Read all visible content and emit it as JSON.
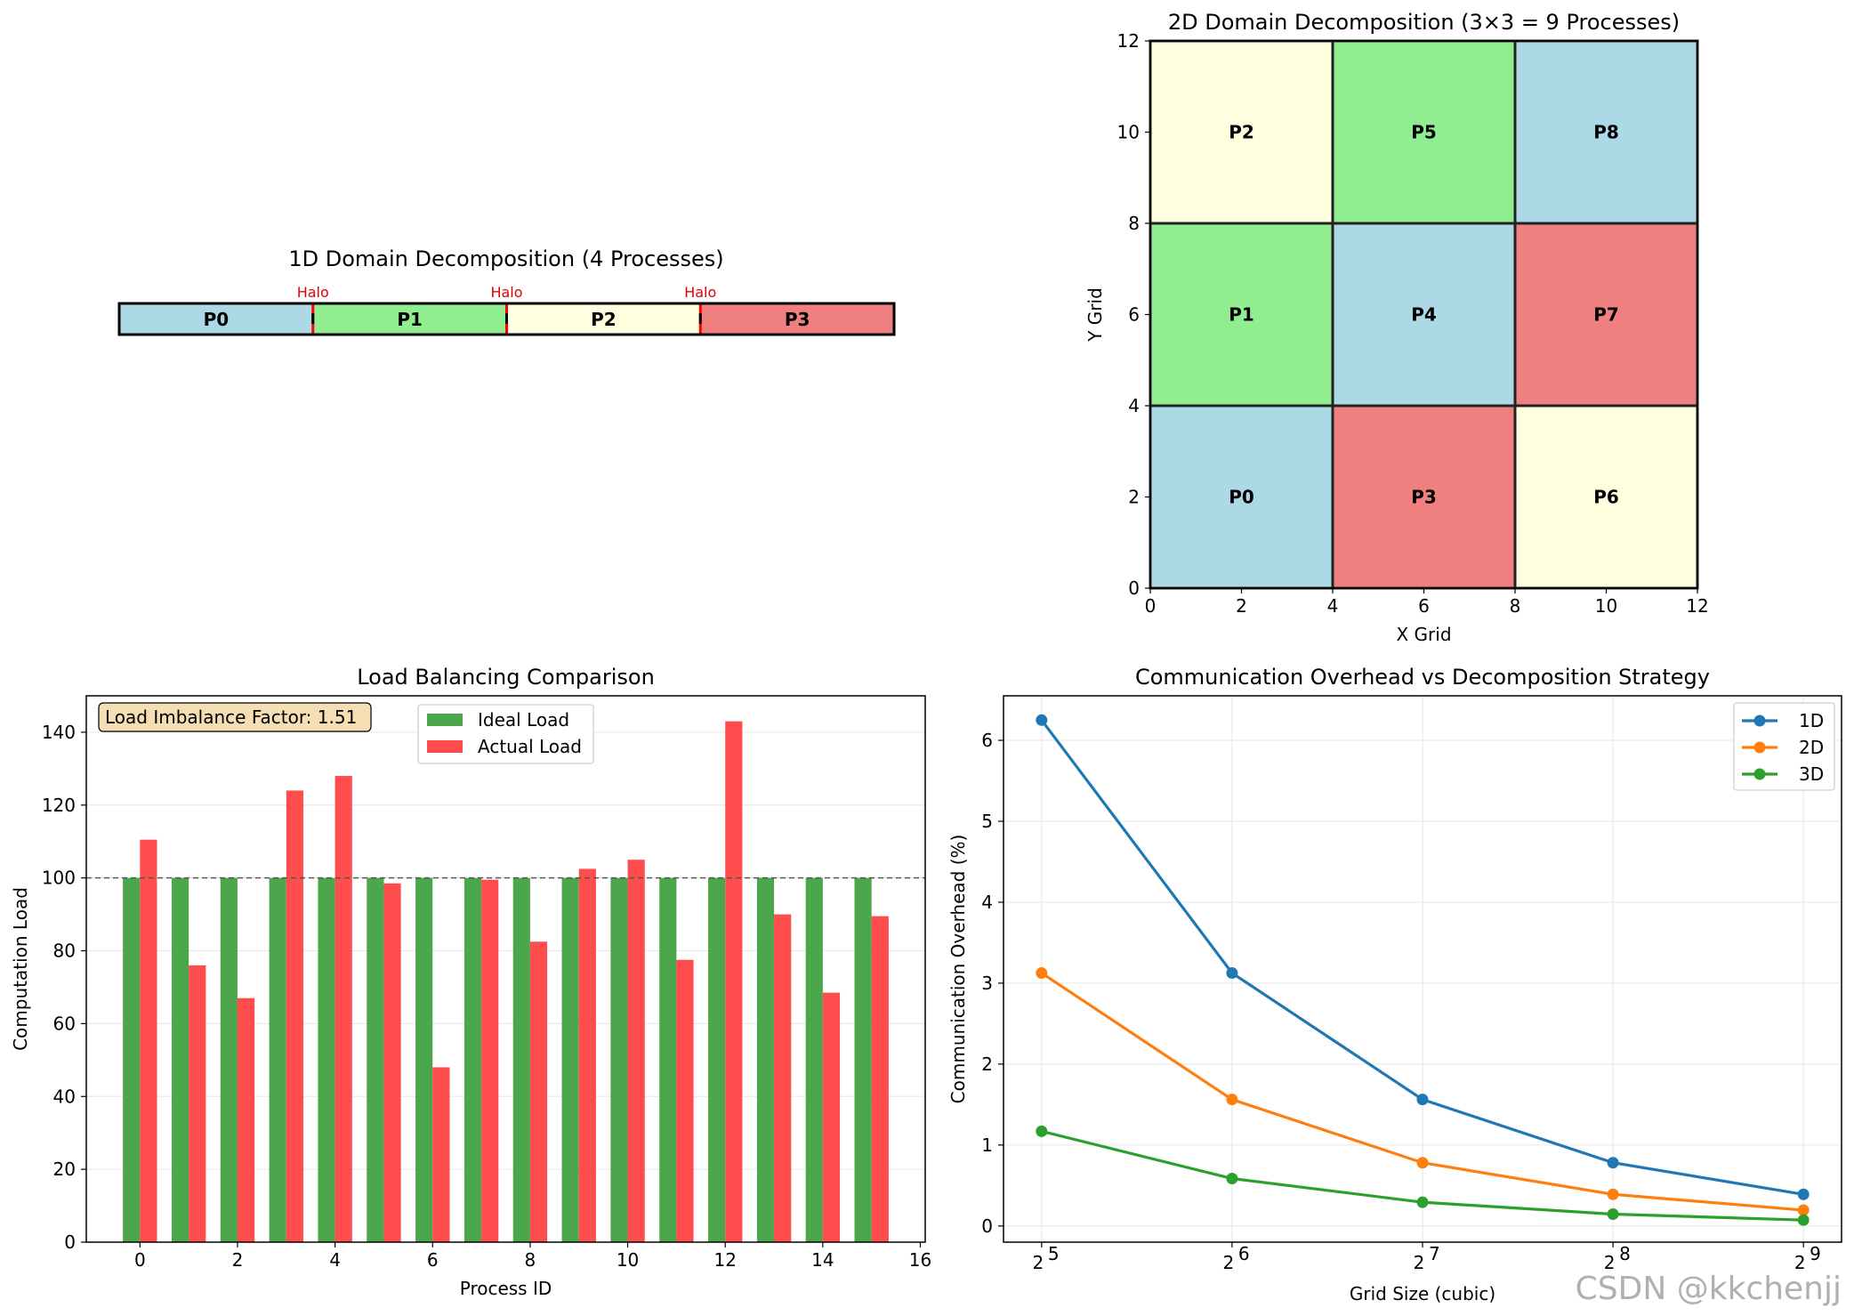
{
  "watermark": "CSDN @kkchenjj",
  "chart_data": [
    {
      "type": "bar",
      "title": "1D Domain Decomposition (4 Processes)",
      "segments": [
        {
          "label": "P0",
          "color": "#add8e6"
        },
        {
          "label": "P1",
          "color": "#90ee90"
        },
        {
          "label": "P2",
          "color": "#ffffe0"
        },
        {
          "label": "P3",
          "color": "#f08080"
        }
      ],
      "halo_label": "Halo",
      "halo_color": "#ff0000"
    },
    {
      "type": "heatmap",
      "title": "2D Domain Decomposition (3×3 = 9 Processes)",
      "xlabel": "X Grid",
      "ylabel": "Y Grid",
      "xlim": [
        0,
        12
      ],
      "ylim": [
        0,
        12
      ],
      "xticks": [
        "0",
        "2",
        "4",
        "6",
        "8",
        "10",
        "12"
      ],
      "yticks": [
        "0",
        "2",
        "4",
        "6",
        "8",
        "10",
        "12"
      ],
      "cells": [
        {
          "label": "P0",
          "col": 0,
          "row": 0,
          "color": "#add8e6"
        },
        {
          "label": "P1",
          "col": 0,
          "row": 1,
          "color": "#90ee90"
        },
        {
          "label": "P2",
          "col": 0,
          "row": 2,
          "color": "#ffffe0"
        },
        {
          "label": "P3",
          "col": 1,
          "row": 0,
          "color": "#f08080"
        },
        {
          "label": "P4",
          "col": 1,
          "row": 1,
          "color": "#add8e6"
        },
        {
          "label": "P5",
          "col": 1,
          "row": 2,
          "color": "#90ee90"
        },
        {
          "label": "P6",
          "col": 2,
          "row": 0,
          "color": "#ffffe0"
        },
        {
          "label": "P7",
          "col": 2,
          "row": 1,
          "color": "#f08080"
        },
        {
          "label": "P8",
          "col": 2,
          "row": 2,
          "color": "#add8e6"
        }
      ],
      "cell_size": 4
    },
    {
      "type": "bar",
      "title": "Load Balancing Comparison",
      "xlabel": "Process ID",
      "ylabel": "Computation Load",
      "xlim": [
        -1.1,
        16.1
      ],
      "ylim": [
        0,
        150
      ],
      "xticks": [
        "0",
        "2",
        "4",
        "6",
        "8",
        "10",
        "12",
        "14",
        "16"
      ],
      "yticks": [
        "0",
        "20",
        "40",
        "60",
        "80",
        "100",
        "120",
        "140"
      ],
      "categories": [
        0,
        1,
        2,
        3,
        4,
        5,
        6,
        7,
        8,
        9,
        10,
        11,
        12,
        13,
        14,
        15
      ],
      "series": [
        {
          "name": "Ideal Load",
          "color": "#4ca64c",
          "values": [
            100,
            100,
            100,
            100,
            100,
            100,
            100,
            100,
            100,
            100,
            100,
            100,
            100,
            100,
            100,
            100
          ]
        },
        {
          "name": "Actual Load",
          "color": "#ff4d4d",
          "values": [
            110.5,
            76,
            67,
            124,
            128,
            98.5,
            48,
            99.5,
            82.5,
            102.5,
            105,
            77.5,
            143,
            90,
            68.5,
            89.5
          ]
        }
      ],
      "reference_line": 100,
      "annotation": "Load Imbalance Factor: 1.51",
      "grid": true,
      "legend_position": "top-center"
    },
    {
      "type": "line",
      "title": "Communication Overhead vs Decomposition Strategy",
      "xlabel": "Grid Size (cubic)",
      "ylabel": "Communication Overhead (%)",
      "x": [
        32,
        64,
        128,
        256,
        512
      ],
      "xticks": [
        {
          "base": "2",
          "exp": "5"
        },
        {
          "base": "2",
          "exp": "6"
        },
        {
          "base": "2",
          "exp": "7"
        },
        {
          "base": "2",
          "exp": "8"
        },
        {
          "base": "2",
          "exp": "9"
        }
      ],
      "xscale": "log2",
      "ylim": [
        -0.2,
        6.55
      ],
      "yticks": [
        "0",
        "1",
        "2",
        "3",
        "4",
        "5",
        "6"
      ],
      "series": [
        {
          "name": "1D",
          "color": "#1f77b4",
          "values": [
            6.25,
            3.125,
            1.5625,
            0.78125,
            0.390625
          ]
        },
        {
          "name": "2D",
          "color": "#ff7f0e",
          "values": [
            3.125,
            1.5625,
            0.78125,
            0.390625,
            0.1953
          ]
        },
        {
          "name": "3D",
          "color": "#2ca02c",
          "values": [
            1.17,
            0.586,
            0.293,
            0.146,
            0.073
          ]
        }
      ],
      "grid": true,
      "legend_position": "top-right"
    }
  ]
}
